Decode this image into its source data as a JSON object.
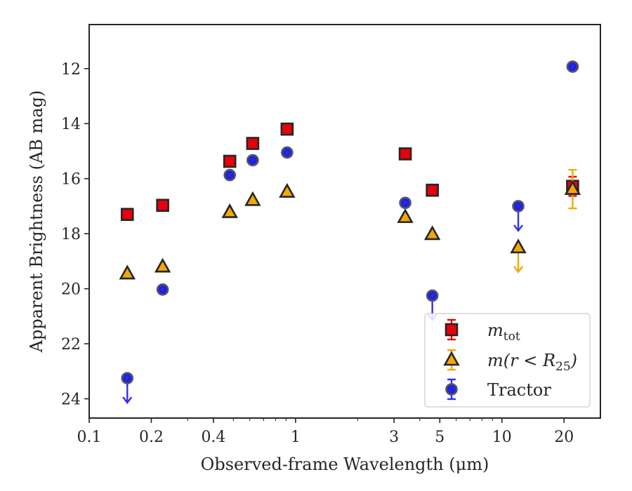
{
  "chart_data": {
    "type": "scatter",
    "title": "",
    "xlabel": "Observed-frame Wavelength (μm)",
    "ylabel": "Apparent Brightness (AB mag)",
    "xscale": "log",
    "xlim": [
      0.1,
      30
    ],
    "ylim": [
      24.7,
      10.4
    ],
    "y_inverted": true,
    "grid": false,
    "legend_position": "lower-right",
    "x_ticks": [
      {
        "value": 0.1,
        "label": "0.1"
      },
      {
        "value": 0.2,
        "label": "0.2"
      },
      {
        "value": 0.4,
        "label": "0.4"
      },
      {
        "value": 1,
        "label": "1"
      },
      {
        "value": 3,
        "label": "3"
      },
      {
        "value": 5,
        "label": "5"
      },
      {
        "value": 10,
        "label": "10"
      },
      {
        "value": 20,
        "label": "20"
      }
    ],
    "y_ticks": [
      {
        "value": 12,
        "label": "12"
      },
      {
        "value": 14,
        "label": "14"
      },
      {
        "value": 16,
        "label": "16"
      },
      {
        "value": 18,
        "label": "18"
      },
      {
        "value": 20,
        "label": "20"
      },
      {
        "value": 22,
        "label": "22"
      },
      {
        "value": 24,
        "label": "24"
      }
    ],
    "series": [
      {
        "name": "m_tot",
        "legend_label": "m",
        "legend_sub": "tot",
        "marker": "square",
        "color": "#e8000b",
        "errcolor": "#e8000b",
        "points": [
          {
            "x": 0.153,
            "y": 17.3
          },
          {
            "x": 0.227,
            "y": 16.97
          },
          {
            "x": 0.48,
            "y": 15.37
          },
          {
            "x": 0.62,
            "y": 14.72
          },
          {
            "x": 0.91,
            "y": 14.2
          },
          {
            "x": 3.4,
            "y": 15.1
          },
          {
            "x": 4.6,
            "y": 16.42
          },
          {
            "x": 22,
            "y": 16.28,
            "err": 0.35
          }
        ]
      },
      {
        "name": "m(r<R_25)",
        "legend_label": "m(r < R",
        "legend_sub": "25",
        "legend_suffix": ")",
        "marker": "triangle",
        "color": "#f5a800",
        "errcolor": "#f5a800",
        "points": [
          {
            "x": 0.153,
            "y": 19.45
          },
          {
            "x": 0.227,
            "y": 19.2
          },
          {
            "x": 0.48,
            "y": 17.22
          },
          {
            "x": 0.62,
            "y": 16.78
          },
          {
            "x": 0.91,
            "y": 16.48
          },
          {
            "x": 3.4,
            "y": 17.4
          },
          {
            "x": 4.6,
            "y": 18.02
          },
          {
            "x": 12,
            "y": 18.5,
            "upper_limit": true
          },
          {
            "x": 22,
            "y": 16.38,
            "err": 0.7
          }
        ]
      },
      {
        "name": "Tractor",
        "legend_label": "Tractor",
        "marker": "circle",
        "color": "#1f22e0",
        "errcolor": "#3030f0",
        "points": [
          {
            "x": 0.153,
            "y": 23.25,
            "upper_limit": true
          },
          {
            "x": 0.227,
            "y": 20.03
          },
          {
            "x": 0.48,
            "y": 15.87
          },
          {
            "x": 0.62,
            "y": 15.33
          },
          {
            "x": 0.91,
            "y": 15.05
          },
          {
            "x": 3.4,
            "y": 16.88
          },
          {
            "x": 4.6,
            "y": 20.25,
            "upper_limit": true
          },
          {
            "x": 12,
            "y": 17.0,
            "upper_limit": true
          },
          {
            "x": 22,
            "y": 11.93
          }
        ]
      }
    ]
  }
}
